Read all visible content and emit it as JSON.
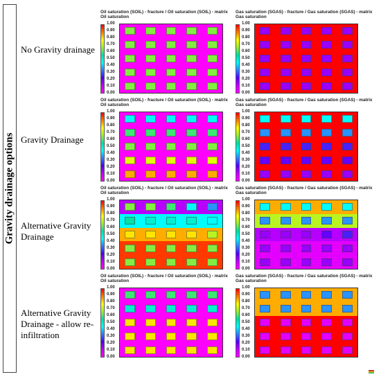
{
  "side_label": "Gravity drainage options",
  "row_labels": [
    "No Gravity drainage",
    "Gravity Drainage",
    "Alternative Gravity Drainage",
    "Alternative Gravity Drainage - allow re-infiltration"
  ],
  "panels": [
    {
      "title": "Oil saturation (SOIL) - fracture / Oil saturation (SOIL) - matrix",
      "subtitle": "Oil saturation"
    },
    {
      "title": "Gas saturation (SGAS) - fracture / Gas saturation (SGAS) - matrix",
      "subtitle": "Gas saturation"
    },
    {
      "title": "Oil saturation (SOIL) - fracture / Oil saturation (SOIL) - matrix",
      "subtitle": "Oil saturation"
    },
    {
      "title": "Gas saturation (SGAS) - fracture / Gas saturation (SGAS) - matrix",
      "subtitle": "Gas saturation"
    },
    {
      "title": "Oil saturation (SOIL) - fracture / Oil saturation (SOIL) - matrix",
      "subtitle": "Oil saturation"
    },
    {
      "title": "Gas saturation (SGAS) - fracture / Gas saturation (SGAS) - matrix",
      "subtitle": "Gas saturation"
    },
    {
      "title": "Oil saturation (SOIL) - fracture / Oil saturation (SOIL) - matrix",
      "subtitle": "Oil saturation"
    },
    {
      "title": "Gas saturation (SGAS) - fracture / Gas saturation (SGAS) - matrix",
      "subtitle": "Gas saturation"
    }
  ],
  "colorbar_ticks": [
    "1.00",
    "0.90",
    "0.80",
    "0.70",
    "0.60",
    "0.50",
    "0.40",
    "0.30",
    "0.20",
    "0.10",
    "0.00"
  ],
  "colors": {
    "colorbar": [
      "#ff0000",
      "#ff7f00",
      "#ffff00",
      "#9bef30",
      "#00e0a0",
      "#00ffff",
      "#3080ff",
      "#5000ff",
      "#c000ff",
      "#ff00ff"
    ]
  },
  "grids": [
    {
      "frac": [
        [
          0,
          0,
          0,
          0,
          0
        ],
        [
          0,
          0,
          0,
          0,
          0
        ],
        [
          0,
          0,
          0,
          0,
          0
        ],
        [
          0,
          0,
          0,
          0,
          0
        ],
        [
          0,
          0,
          0,
          0,
          0
        ]
      ],
      "mat": [
        [
          0.65,
          0.65,
          0.65,
          0.65,
          0.65
        ],
        [
          0.65,
          0.65,
          0.65,
          0.65,
          0.65
        ],
        [
          0.65,
          0.65,
          0.65,
          0.65,
          0.65
        ],
        [
          0.65,
          0.65,
          0.65,
          0.65,
          0.65
        ],
        [
          0.65,
          0.65,
          0.65,
          0.65,
          0.65
        ]
      ]
    },
    {
      "frac": [
        [
          1,
          1,
          1,
          1,
          1
        ],
        [
          1,
          1,
          1,
          1,
          1
        ],
        [
          1,
          1,
          1,
          1,
          1
        ],
        [
          1,
          1,
          1,
          1,
          1
        ],
        [
          1,
          1,
          1,
          1,
          1
        ]
      ],
      "mat": [
        [
          0.15,
          0.15,
          0.15,
          0.15,
          0.15
        ],
        [
          0.15,
          0.15,
          0.15,
          0.15,
          0.15
        ],
        [
          0.15,
          0.15,
          0.15,
          0.15,
          0.15
        ],
        [
          0.15,
          0.15,
          0.15,
          0.15,
          0.15
        ],
        [
          0.15,
          0.15,
          0.15,
          0.15,
          0.15
        ]
      ]
    },
    {
      "frac": [
        [
          0,
          0,
          0,
          0,
          0
        ],
        [
          0,
          0,
          0,
          0,
          0
        ],
        [
          0,
          0,
          0,
          0,
          0
        ],
        [
          0,
          0,
          0,
          0,
          0
        ],
        [
          0,
          0,
          0,
          0,
          0
        ]
      ],
      "mat": [
        [
          0.45,
          0.45,
          0.45,
          0.45,
          0.45
        ],
        [
          0.6,
          0.6,
          0.6,
          0.6,
          0.6
        ],
        [
          0.65,
          0.65,
          0.65,
          0.65,
          0.65
        ],
        [
          0.75,
          0.75,
          0.75,
          0.75,
          0.75
        ],
        [
          0.85,
          0.85,
          0.85,
          0.85,
          0.85
        ]
      ]
    },
    {
      "frac": [
        [
          1,
          1,
          1,
          1,
          1
        ],
        [
          1,
          1,
          1,
          1,
          1
        ],
        [
          1,
          1,
          1,
          1,
          1
        ],
        [
          1,
          1,
          1,
          1,
          1
        ],
        [
          1,
          1,
          1,
          1,
          1
        ]
      ],
      "mat": [
        [
          0.45,
          0.45,
          0.45,
          0.45,
          0.45
        ],
        [
          0.35,
          0.35,
          0.35,
          0.35,
          0.35
        ],
        [
          0.25,
          0.25,
          0.25,
          0.25,
          0.25
        ],
        [
          0.2,
          0.2,
          0.2,
          0.2,
          0.2
        ],
        [
          0.15,
          0.15,
          0.15,
          0.15,
          0.15
        ]
      ]
    },
    {
      "frac": [
        [
          0.12,
          0.12,
          0.12,
          0.12,
          0.12
        ],
        [
          0.45,
          0.45,
          0.45,
          0.45,
          0.45
        ],
        [
          0.85,
          0.85,
          0.85,
          0.85,
          0.85
        ],
        [
          0.95,
          0.95,
          0.95,
          0.95,
          0.95
        ],
        [
          0.95,
          0.95,
          0.95,
          0.95,
          0.95
        ]
      ],
      "mat": [
        [
          0.65,
          0.65,
          0.6,
          0.45,
          0.35
        ],
        [
          0.55,
          0.5,
          0.5,
          0.5,
          0.45
        ],
        [
          0.8,
          0.8,
          0.8,
          0.8,
          0.7
        ],
        [
          0.65,
          0.65,
          0.65,
          0.65,
          0.65
        ],
        [
          0.65,
          0.65,
          0.65,
          0.65,
          0.65
        ]
      ]
    },
    {
      "frac": [
        [
          0.85,
          0.85,
          0.85,
          0.85,
          0.85
        ],
        [
          0.7,
          0.7,
          0.7,
          0.7,
          0.7
        ],
        [
          0.12,
          0.12,
          0.12,
          0.12,
          0.12
        ],
        [
          0.05,
          0.05,
          0.05,
          0.05,
          0.05
        ],
        [
          0.05,
          0.05,
          0.05,
          0.05,
          0.05
        ]
      ],
      "mat": [
        [
          0.45,
          0.45,
          0.45,
          0.45,
          0.45
        ],
        [
          0.35,
          0.35,
          0.35,
          0.35,
          0.35
        ],
        [
          0.15,
          0.15,
          0.15,
          0.2,
          0.25
        ],
        [
          0.15,
          0.15,
          0.15,
          0.15,
          0.15
        ],
        [
          0.15,
          0.15,
          0.15,
          0.15,
          0.15
        ]
      ]
    },
    {
      "frac": [
        [
          0,
          0,
          0,
          0,
          0
        ],
        [
          0,
          0,
          0,
          0,
          0
        ],
        [
          0,
          0,
          0,
          0,
          0
        ],
        [
          0,
          0,
          0,
          0,
          0
        ],
        [
          0,
          0,
          0,
          0,
          0
        ]
      ],
      "mat": [
        [
          0.6,
          0.6,
          0.6,
          0.6,
          0.6
        ],
        [
          0.5,
          0.5,
          0.5,
          0.5,
          0.5
        ],
        [
          0.8,
          0.8,
          0.8,
          0.8,
          0.8
        ],
        [
          0.8,
          0.8,
          0.8,
          0.8,
          0.8
        ],
        [
          0.8,
          0.8,
          0.8,
          0.8,
          0.8
        ]
      ]
    },
    {
      "frac": [
        [
          0.85,
          0.85,
          0.85,
          0.85,
          0.85
        ],
        [
          0.85,
          0.85,
          0.85,
          0.85,
          0.85
        ],
        [
          1,
          1,
          1,
          1,
          1
        ],
        [
          1,
          1,
          1,
          1,
          1
        ],
        [
          1,
          1,
          1,
          1,
          1
        ]
      ],
      "mat": [
        [
          0.35,
          0.35,
          0.35,
          0.35,
          0.35
        ],
        [
          0.35,
          0.35,
          0.35,
          0.35,
          0.35
        ],
        [
          0.05,
          0.05,
          0.05,
          0.05,
          0.05
        ],
        [
          0.05,
          0.05,
          0.05,
          0.05,
          0.05
        ],
        [
          0.05,
          0.05,
          0.05,
          0.05,
          0.05
        ]
      ]
    }
  ]
}
